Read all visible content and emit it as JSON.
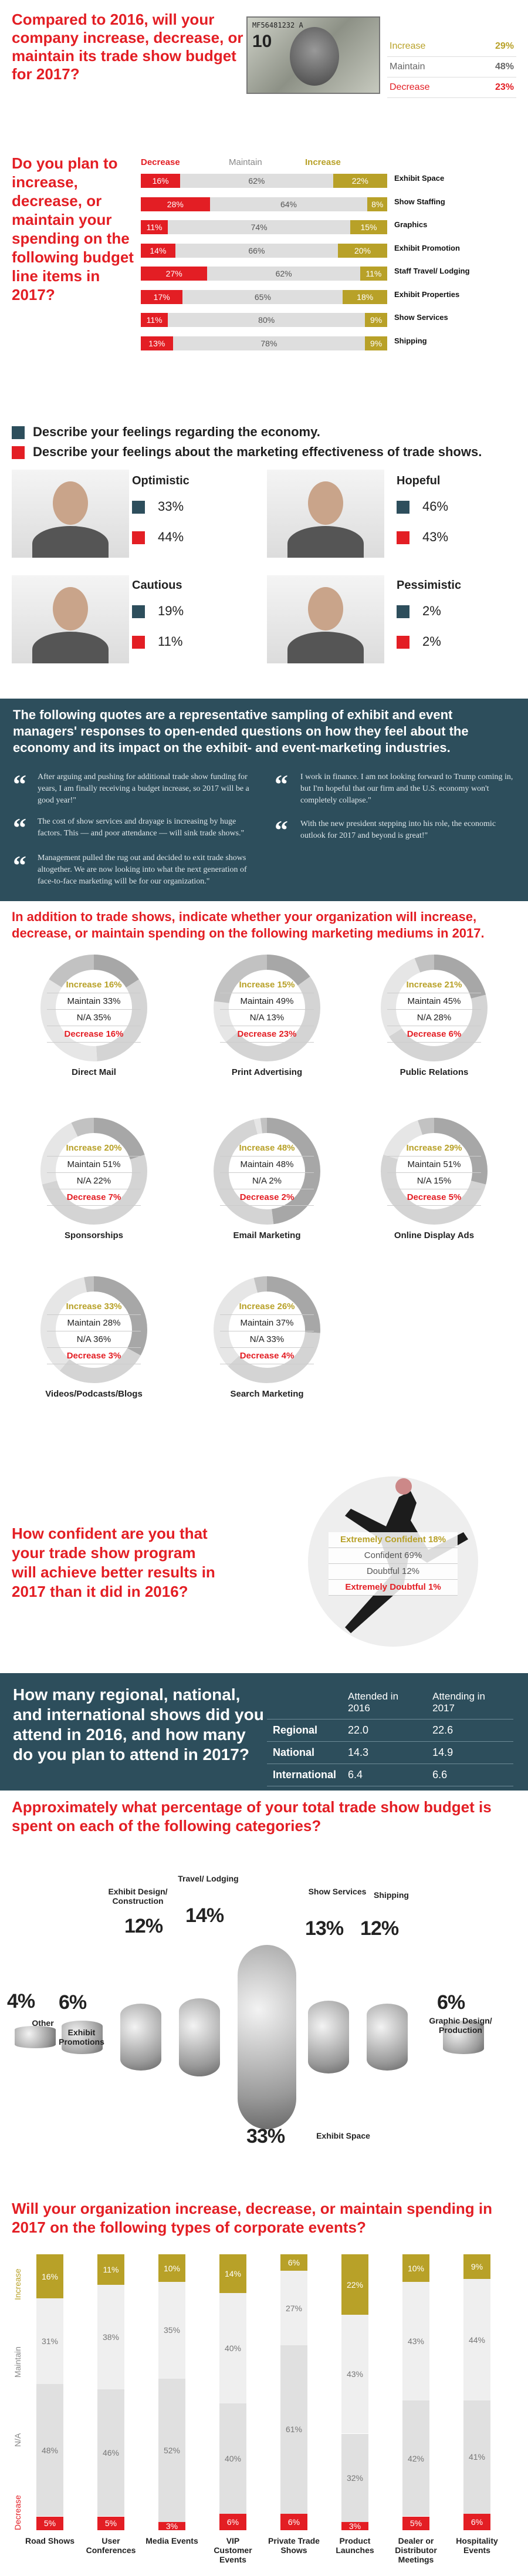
{
  "s1": {
    "question": "Compared to 2016, will your company increase, decrease, or maintain its trade show budget for 2017?",
    "rows": [
      {
        "label": "Increase",
        "value": "29%",
        "color": "#b8a128"
      },
      {
        "label": "Maintain",
        "value": "48%",
        "color": "#666666"
      },
      {
        "label": "Decrease",
        "value": "23%",
        "color": "#e31e24"
      }
    ],
    "bill_text": "MF56481232 A"
  },
  "s2": {
    "question": "Do you plan to increase, decrease, or maintain your spending on the following budget line items in 2017?",
    "header": {
      "decrease": "Decrease",
      "maintain": "Maintain",
      "increase": "Increase"
    },
    "rows": [
      {
        "label": "Exhibit Space",
        "d": 16,
        "m": 62,
        "i": 22
      },
      {
        "label": "Show Staffing",
        "d": 28,
        "m": 64,
        "i": 8
      },
      {
        "label": "Graphics",
        "d": 11,
        "m": 74,
        "i": 15
      },
      {
        "label": "Exhibit Promotion",
        "d": 14,
        "m": 66,
        "i": 20
      },
      {
        "label": "Staff Travel/ Lodging",
        "d": 27,
        "m": 62,
        "i": 11
      },
      {
        "label": "Exhibit Properties",
        "d": 17,
        "m": 65,
        "i": 18
      },
      {
        "label": "Show Services",
        "d": 11,
        "m": 80,
        "i": 9
      },
      {
        "label": "Shipping",
        "d": 13,
        "m": 78,
        "i": 9
      }
    ]
  },
  "s3": {
    "legend_economy": "Describe your feelings regarding the economy.",
    "legend_marketing": "Describe your feelings about the marketing effectiveness of trade shows.",
    "personas": [
      {
        "name": "Optimistic",
        "economy": "33%",
        "marketing": "44%"
      },
      {
        "name": "Hopeful",
        "economy": "46%",
        "marketing": "43%"
      },
      {
        "name": "Cautious",
        "economy": "19%",
        "marketing": "11%"
      },
      {
        "name": "Pessimistic",
        "economy": "2%",
        "marketing": "2%"
      }
    ]
  },
  "quotes": {
    "heading": "The following quotes are a representative sampling of exhibit and event managers' responses to open-ended questions on how they feel about the economy and its impact on the exhibit- and event-marketing industries.",
    "items": [
      "After arguing and pushing for additional trade show funding for years, I am finally receiving a budget increase, so 2017 will be a good year!\"",
      "The cost of show services and drayage is increasing by huge factors. This — and poor attendance — will sink trade shows.\"",
      "Management pulled the rug out and decided to exit trade shows altogether. We are now looking into what the next generation of face-to-face marketing will be for our organization.\"",
      "I work in finance. I am not looking forward to Trump coming in, but I'm hopeful that our firm and the U.S. economy won't completely collapse.\"",
      "With the new president stepping into his role, the economic outlook for 2017 and beyond is great!\""
    ]
  },
  "s4": {
    "question": "In addition to trade shows, indicate whether your organization will increase, decrease, or maintain spending on the following marketing mediums in 2017.",
    "mediums": [
      {
        "name": "Direct Mail",
        "increase": "16%",
        "maintain": "33%",
        "na": "35%",
        "decrease": "16%"
      },
      {
        "name": "Print Advertising",
        "increase": "15%",
        "maintain": "49%",
        "na": "13%",
        "decrease": "23%"
      },
      {
        "name": "Public Relations",
        "increase": "21%",
        "maintain": "45%",
        "na": "28%",
        "decrease": "6%"
      },
      {
        "name": "Sponsorships",
        "increase": "20%",
        "maintain": "51%",
        "na": "22%",
        "decrease": "7%"
      },
      {
        "name": "Email Marketing",
        "increase": "48%",
        "maintain": "48%",
        "na": "2%",
        "decrease": "2%"
      },
      {
        "name": "Online Display Ads",
        "increase": "29%",
        "maintain": "51%",
        "na": "15%",
        "decrease": "5%"
      },
      {
        "name": "Videos/Podcasts/Blogs",
        "increase": "33%",
        "maintain": "28%",
        "na": "36%",
        "decrease": "3%"
      },
      {
        "name": "Search Marketing",
        "increase": "26%",
        "maintain": "37%",
        "na": "33%",
        "decrease": "4%"
      }
    ],
    "labels": {
      "increase": "Increase",
      "maintain": "Maintain",
      "na": "N/A",
      "decrease": "Decrease"
    }
  },
  "s5": {
    "question": "How confident are you that your trade show program will achieve better results in 2017 than it did in 2016?",
    "rows": [
      {
        "label": "Extremely Confident",
        "value": "18%"
      },
      {
        "label": "Confident",
        "value": "69%"
      },
      {
        "label": "Doubtful",
        "value": "12%"
      },
      {
        "label": "Extremely Doubtful",
        "value": "1%"
      }
    ]
  },
  "s6": {
    "question": "How many regional, national, and international shows did you attend in 2016, and how many do you plan to attend in 2017?",
    "col1": "Attended in 2016",
    "col2": "Attending in 2017",
    "rows": [
      {
        "label": "Regional",
        "a": "22.0",
        "b": "22.6"
      },
      {
        "label": "National",
        "a": "14.3",
        "b": "14.9"
      },
      {
        "label": "International",
        "a": "6.4",
        "b": "6.6"
      }
    ]
  },
  "s7": {
    "question": "Approximately what percentage of your total trade show budget is spent on each of the following categories?",
    "cats": [
      {
        "label": "Other",
        "value": "4%"
      },
      {
        "label": "Exhibit Promotions",
        "value": "6%"
      },
      {
        "label": "Exhibit Design/ Construction",
        "value": "12%"
      },
      {
        "label": "Travel/ Lodging",
        "value": "14%"
      },
      {
        "label": "Exhibit Space",
        "value": "33%"
      },
      {
        "label": "Show Services",
        "value": "13%"
      },
      {
        "label": "Shipping",
        "value": "12%"
      },
      {
        "label": "Graphic Design/ Production",
        "value": "6%"
      }
    ]
  },
  "s8": {
    "question": "Will your organization increase, decrease, or maintain spending in 2017 on the following types of corporate events?",
    "side": {
      "increase": "Increase",
      "maintain": "Maintain",
      "na": "N/A",
      "decrease": "Decrease"
    },
    "events": [
      {
        "label": "Road Shows",
        "i": 16,
        "m": 31,
        "na": 48,
        "d": 5
      },
      {
        "label": "User Conferences",
        "i": 11,
        "m": 38,
        "na": 46,
        "d": 5
      },
      {
        "label": "Media Events",
        "i": 10,
        "m": 35,
        "na": 52,
        "d": 3
      },
      {
        "label": "VIP Customer Events",
        "i": 14,
        "m": 40,
        "na": 40,
        "d": 6
      },
      {
        "label": "Private Trade Shows",
        "i": 6,
        "m": 27,
        "na": 61,
        "d": 6
      },
      {
        "label": "Product Launches",
        "i": 22,
        "m": 43,
        "na": 32,
        "d": 3
      },
      {
        "label": "Dealer or Distributor Meetings",
        "i": 10,
        "m": 43,
        "na": 42,
        "d": 5
      },
      {
        "label": "Hospitality Events",
        "i": 9,
        "m": 44,
        "na": 41,
        "d": 6
      }
    ]
  },
  "chart_data": [
    {
      "type": "table",
      "title": "",
      "categories": [
        "Increase",
        "Maintain",
        "Decrease"
      ],
      "values": [
        29,
        48,
        23
      ]
    },
    {
      "type": "bar",
      "categories": [
        "Exhibit Space",
        "Show Staffing",
        "Graphics",
        "Exhibit Promotion",
        "Staff Travel/ Lodging",
        "Exhibit Properties",
        "Show Services",
        "Shipping"
      ],
      "series": [
        {
          "name": "Decrease",
          "values": [
            16,
            28,
            11,
            14,
            27,
            17,
            11,
            13
          ]
        },
        {
          "name": "Maintain",
          "values": [
            62,
            64,
            74,
            66,
            62,
            65,
            80,
            78
          ]
        },
        {
          "name": "Increase",
          "values": [
            22,
            8,
            15,
            20,
            11,
            18,
            9,
            9
          ]
        }
      ]
    },
    {
      "type": "bar",
      "categories": [
        "Optimistic",
        "Hopeful",
        "Cautious",
        "Pessimistic"
      ],
      "series": [
        {
          "name": "Describe your feelings regarding the economy.",
          "values": [
            33,
            46,
            19,
            2
          ]
        },
        {
          "name": "Describe your feelings about the marketing effectiveness of trade shows.",
          "values": [
            44,
            43,
            11,
            2
          ]
        }
      ]
    },
    {
      "type": "pie",
      "categories": [
        "Direct Mail",
        "Print Advertising",
        "Public Relations",
        "Sponsorships",
        "Email Marketing",
        "Online Display Ads",
        "Videos/Podcasts/Blogs",
        "Search Marketing"
      ],
      "series": [
        {
          "name": "Increase",
          "values": [
            16,
            15,
            21,
            20,
            48,
            29,
            33,
            26
          ]
        },
        {
          "name": "Maintain",
          "values": [
            33,
            49,
            45,
            51,
            48,
            51,
            28,
            37
          ]
        },
        {
          "name": "N/A",
          "values": [
            35,
            13,
            28,
            22,
            2,
            15,
            36,
            33
          ]
        },
        {
          "name": "Decrease",
          "values": [
            16,
            23,
            6,
            7,
            2,
            5,
            3,
            4
          ]
        }
      ]
    },
    {
      "type": "table",
      "categories": [
        "Extremely Confident",
        "Confident",
        "Doubtful",
        "Extremely Doubtful"
      ],
      "values": [
        18,
        69,
        12,
        1
      ]
    },
    {
      "type": "table",
      "categories": [
        "Regional",
        "National",
        "International"
      ],
      "series": [
        {
          "name": "Attended in 2016",
          "values": [
            22.0,
            14.3,
            6.4
          ]
        },
        {
          "name": "Attending in 2017",
          "values": [
            22.6,
            14.9,
            6.6
          ]
        }
      ]
    },
    {
      "type": "bar",
      "categories": [
        "Other",
        "Exhibit Promotions",
        "Exhibit Design/ Construction",
        "Travel/ Lodging",
        "Exhibit Space",
        "Show Services",
        "Shipping",
        "Graphic Design/ Production"
      ],
      "values": [
        4,
        6,
        12,
        14,
        33,
        13,
        12,
        6
      ]
    },
    {
      "type": "bar",
      "categories": [
        "Road Shows",
        "User Conferences",
        "Media Events",
        "VIP Customer Events",
        "Private Trade Shows",
        "Product Launches",
        "Dealer or Distributor Meetings",
        "Hospitality Events"
      ],
      "series": [
        {
          "name": "Increase",
          "values": [
            16,
            11,
            10,
            14,
            6,
            22,
            10,
            9
          ]
        },
        {
          "name": "Maintain",
          "values": [
            31,
            38,
            35,
            40,
            27,
            43,
            43,
            44
          ]
        },
        {
          "name": "N/A",
          "values": [
            48,
            46,
            52,
            40,
            61,
            32,
            42,
            41
          ]
        },
        {
          "name": "Decrease",
          "values": [
            5,
            5,
            3,
            6,
            6,
            3,
            5,
            6
          ]
        }
      ]
    }
  ]
}
